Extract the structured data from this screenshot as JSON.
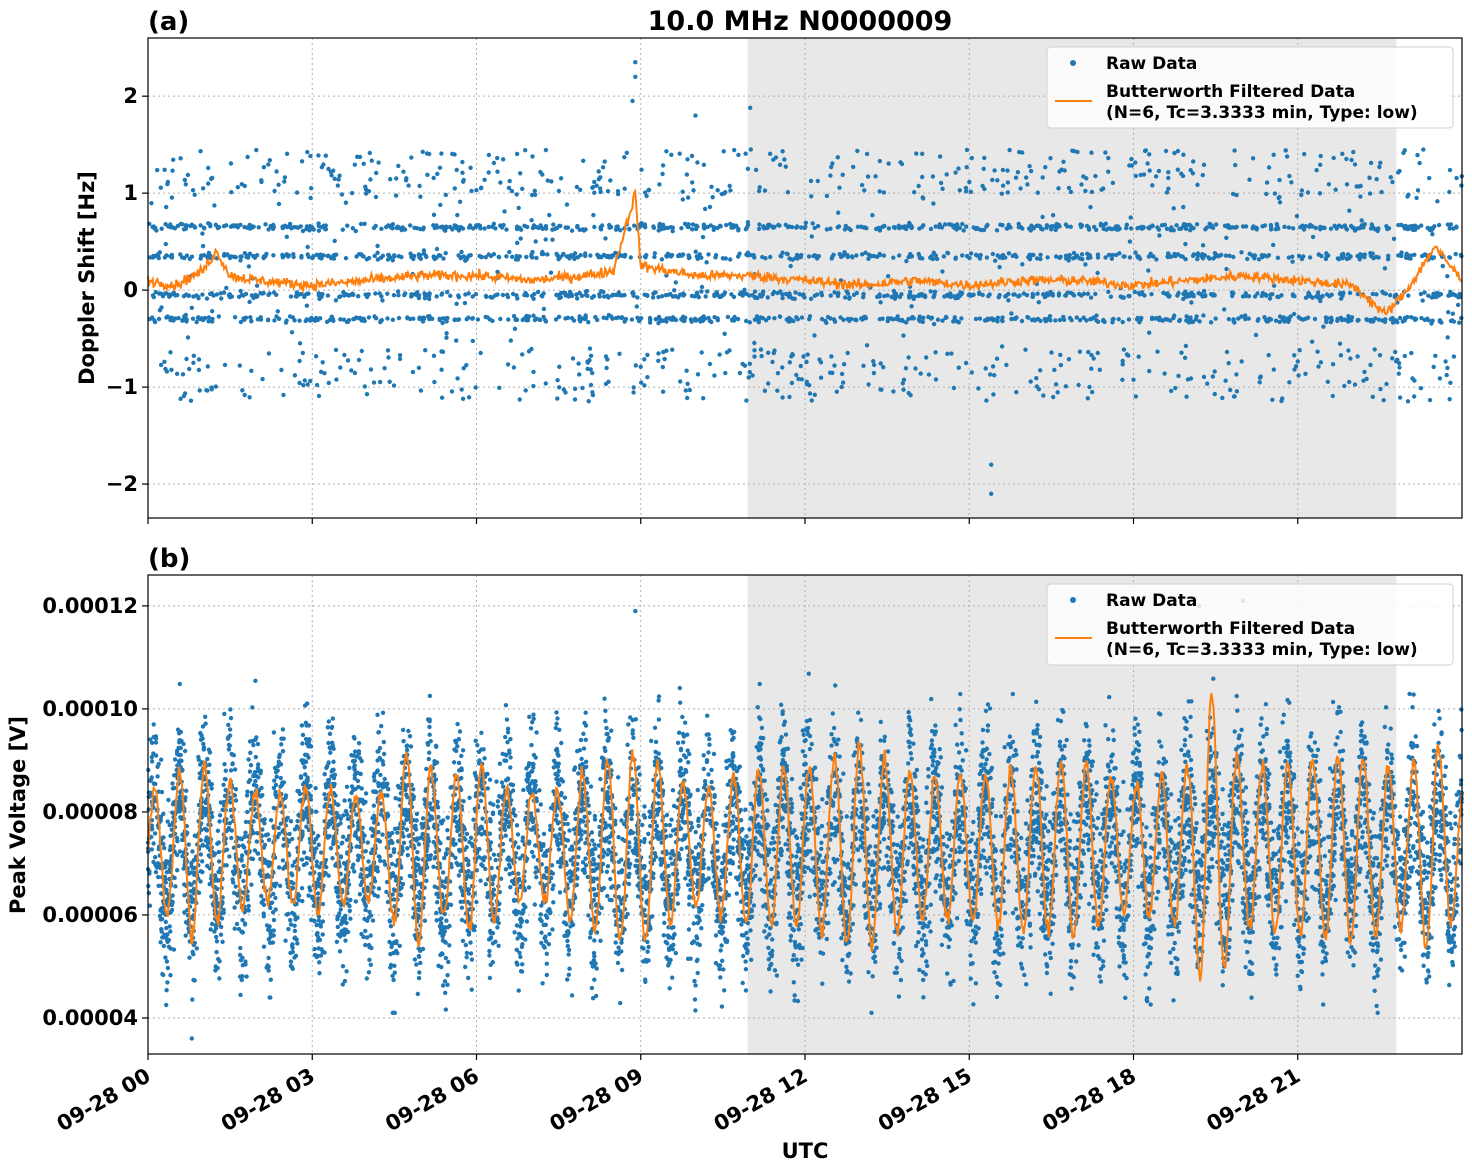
{
  "figure_title": "10.0 MHz N0000009",
  "xlabel": "UTC",
  "shaded_region": {
    "start_hour": 10.95,
    "end_hour": 22.8,
    "color": "#e8e8e8"
  },
  "x_ticks": [
    {
      "hour": 0,
      "label": "09-28 00"
    },
    {
      "hour": 3,
      "label": "09-28 03"
    },
    {
      "hour": 6,
      "label": "09-28 06"
    },
    {
      "hour": 9,
      "label": "09-28 09"
    },
    {
      "hour": 12,
      "label": "09-28 12"
    },
    {
      "hour": 15,
      "label": "09-28 15"
    },
    {
      "hour": 18,
      "label": "09-28 18"
    },
    {
      "hour": 21,
      "label": "09-28 21"
    }
  ],
  "legend": {
    "raw_label": "Raw Data",
    "filtered_label_line1": "Butterworth Filtered Data",
    "filtered_label_line2": "(N=6, Tc=3.3333 min, Type: low)",
    "placement": "top-right"
  },
  "colors": {
    "raw": "#1f77b4",
    "filtered": "#ff7f0e",
    "grid": "#b0b0b0"
  },
  "chart_data": [
    {
      "panel_label": "(a)",
      "type": "scatter",
      "ylabel": "Doppler Shift [Hz]",
      "xlim": [
        0,
        24
      ],
      "ylim": [
        -2.35,
        2.6
      ],
      "y_ticks": [
        {
          "value": 2,
          "label": "2"
        },
        {
          "value": 1,
          "label": "1"
        },
        {
          "value": 0,
          "label": "0"
        },
        {
          "value": -1,
          "label": "−1"
        },
        {
          "value": -2,
          "label": "−2"
        }
      ],
      "grid": true,
      "series": [
        {
          "name": "Raw Data",
          "style": "points",
          "bands": [
            0.65,
            0.35,
            -0.05,
            -0.3
          ],
          "typical_range": [
            -1.1,
            1.4
          ],
          "outliers": [
            [
              8.9,
              2.35
            ],
            [
              8.9,
              2.2
            ],
            [
              8.85,
              1.95
            ],
            [
              15.4,
              -1.8
            ],
            [
              15.4,
              -2.1
            ],
            [
              11.0,
              1.88
            ],
            [
              10.0,
              1.8
            ],
            [
              3.5,
              1.18
            ],
            [
              5.6,
              1.4
            ]
          ]
        },
        {
          "name": "Butterworth Filtered Data",
          "style": "line",
          "x": [
            0,
            0.5,
            1.0,
            1.25,
            1.5,
            2.0,
            3.0,
            4.0,
            5.0,
            6.0,
            7.0,
            8.0,
            8.5,
            8.9,
            9.0,
            9.5,
            10.0,
            11.0,
            12.0,
            13.0,
            14.0,
            15.0,
            16.0,
            17.0,
            18.0,
            19.0,
            20.0,
            21.0,
            22.0,
            22.6,
            23.0,
            23.5,
            24.0
          ],
          "y": [
            0.1,
            0.05,
            0.2,
            0.4,
            0.15,
            0.1,
            0.05,
            0.1,
            0.15,
            0.15,
            0.1,
            0.15,
            0.2,
            1.0,
            0.25,
            0.2,
            0.15,
            0.15,
            0.1,
            0.05,
            0.1,
            0.05,
            0.1,
            0.1,
            0.05,
            0.1,
            0.15,
            0.1,
            0.05,
            -0.25,
            0.0,
            0.45,
            0.1
          ]
        }
      ]
    },
    {
      "panel_label": "(b)",
      "type": "scatter",
      "ylabel": "Peak Voltage [V]",
      "xlim": [
        0,
        24
      ],
      "ylim": [
        3.3e-05,
        0.000126
      ],
      "y_ticks": [
        {
          "value": 0.00012,
          "label": "0.00012"
        },
        {
          "value": 0.0001,
          "label": "0.00010"
        },
        {
          "value": 8e-05,
          "label": "0.00008"
        },
        {
          "value": 6e-05,
          "label": "0.00006"
        },
        {
          "value": 4e-05,
          "label": "0.00004"
        }
      ],
      "grid": true,
      "series": [
        {
          "name": "Raw Data",
          "style": "points",
          "typical_range": [
            4e-05,
            0.00012
          ],
          "outliers": [
            [
              8.9,
              0.000119
            ],
            [
              0.8,
              3.6e-05
            ],
            [
              20.0,
              0.000121
            ],
            [
              19.2,
              0.00012
            ]
          ]
        },
        {
          "name": "Butterworth Filtered Data",
          "style": "line",
          "oscillation": {
            "center": 7.3e-05,
            "amplitude": 1.5e-05,
            "period_hours": 0.46
          },
          "x": [
            0,
            0.15,
            0.4,
            0.8,
            1.1,
            1.6,
            2.0,
            2.5,
            3.0,
            3.6,
            4.2,
            4.8,
            5.4,
            6.0,
            7.0,
            8.0,
            8.9,
            10.0,
            11.0,
            12.0,
            13.0,
            14.0,
            15.0,
            16.0,
            17.0,
            18.0,
            19.0,
            19.35,
            20.0,
            21.0,
            22.0,
            23.0,
            23.5,
            24.0
          ],
          "y": [
            7.6e-05,
            8.6e-05,
            6e-05,
            9.1e-05,
            5.8e-05,
            8.5e-05,
            6.2e-05,
            8.2e-05,
            6e-05,
            8.3e-05,
            6.4e-05,
            9.3e-05,
            6e-05,
            9e-05,
            6.5e-05,
            8.8e-05,
            9.2e-05,
            6.2e-05,
            8.8e-05,
            5.8e-05,
            9.3e-05,
            5.9e-05,
            8.7e-05,
            5.7e-05,
            9e-05,
            6.1e-05,
            8.9e-05,
            0.000105,
            5.8e-05,
            9e-05,
            5.5e-05,
            8.8e-05,
            5.2e-05,
            8.4e-05
          ]
        }
      ]
    }
  ]
}
